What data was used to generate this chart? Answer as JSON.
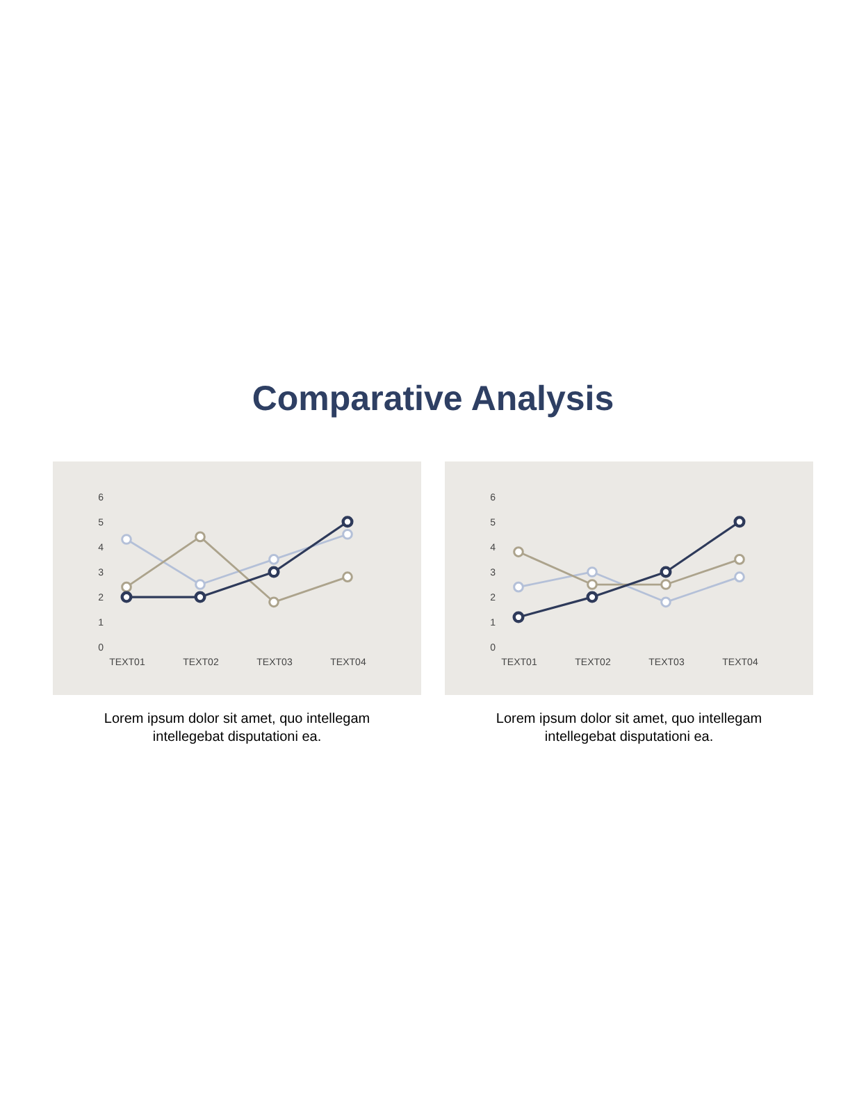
{
  "chart_data": [
    {
      "type": "line",
      "title": "Comparative Analysis",
      "categories": [
        "TEXT01",
        "TEXT02",
        "TEXT03",
        "TEXT04"
      ],
      "ylim": [
        -1.9,
        7.4
      ],
      "yticks": [
        0,
        1,
        2,
        3,
        4,
        5,
        6
      ],
      "grid": false,
      "legend": false,
      "marker": "circle",
      "line_style": "solid",
      "series": [
        {
          "color": "#b4c0d8",
          "values": [
            4.3,
            2.5,
            3.5,
            4.5
          ]
        },
        {
          "color": "#aca38c",
          "values": [
            2.4,
            4.4,
            1.8,
            2.8
          ]
        },
        {
          "color": "#2e3a5a",
          "values": [
            2,
            2,
            3,
            5
          ]
        }
      ],
      "annotations": [
        "Lorem ipsum dolor sit amet, quo intellegam intellegebat disputationi ea."
      ]
    },
    {
      "type": "line",
      "categories": [
        "TEXT01",
        "TEXT02",
        "TEXT03",
        "TEXT04"
      ],
      "ylim": [
        -1.9,
        7.4
      ],
      "yticks": [
        0,
        1,
        2,
        3,
        4,
        5,
        6
      ],
      "grid": false,
      "legend": false,
      "marker": "circle",
      "line_style": "solid",
      "series": [
        {
          "color": "#b4c0d8",
          "values": [
            2.4,
            3,
            1.8,
            2.8
          ]
        },
        {
          "color": "#aca38c",
          "values": [
            3.8,
            2.5,
            2.5,
            3.5
          ]
        },
        {
          "color": "#2e3a5a",
          "values": [
            1.2,
            2,
            3,
            5
          ]
        }
      ],
      "annotations": [
        "Lorem ipsum dolor sit amet, quo intellegam intellegebat disputationi ea."
      ]
    }
  ]
}
